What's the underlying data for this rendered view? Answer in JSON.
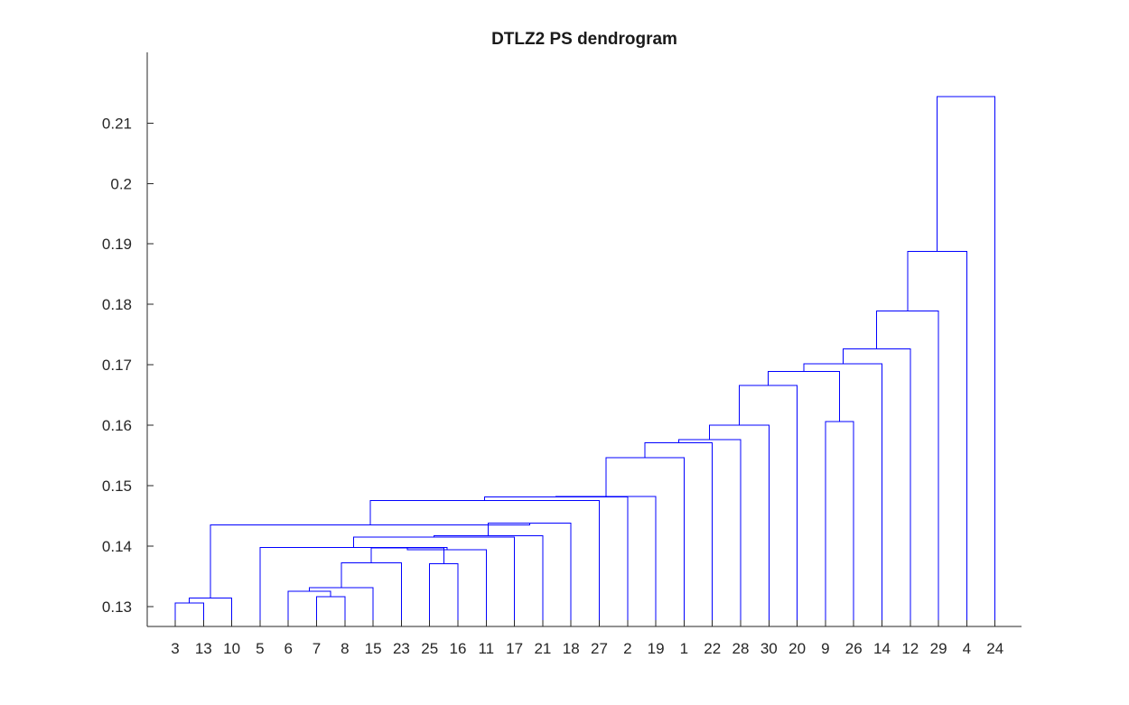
{
  "chart_data": {
    "type": "dendrogram",
    "title": "DTLZ2 PS dendrogram",
    "xlabel": "",
    "ylabel": "",
    "leaf_order": [
      "3",
      "13",
      "10",
      "5",
      "6",
      "7",
      "8",
      "15",
      "23",
      "25",
      "16",
      "11",
      "17",
      "21",
      "18",
      "27",
      "2",
      "19",
      "1",
      "22",
      "28",
      "30",
      "20",
      "9",
      "26",
      "14",
      "12",
      "29",
      "4",
      "24"
    ],
    "yticks": [
      "0.13",
      "0.14",
      "0.15",
      "0.16",
      "0.17",
      "0.18",
      "0.19",
      "0.2",
      "0.21"
    ],
    "ylim": [
      0.1267,
      0.2217
    ],
    "grid": false,
    "links": [
      {
        "id": "A",
        "left": "3",
        "right": "13",
        "height": 0.1306
      },
      {
        "id": "B",
        "left": "A",
        "right": "10",
        "height": 0.1314
      },
      {
        "id": "C",
        "left": "7",
        "right": "8",
        "height": 0.1316
      },
      {
        "id": "D",
        "left": "6",
        "right": "C",
        "height": 0.1325
      },
      {
        "id": "E",
        "left": "D",
        "right": "15",
        "height": 0.1331
      },
      {
        "id": "F",
        "left": "25",
        "right": "16",
        "height": 0.1371
      },
      {
        "id": "G",
        "left": "E",
        "right": "23",
        "height": 0.1372
      },
      {
        "id": "H",
        "left": "G",
        "right": "F",
        "height": 0.1397
      },
      {
        "id": "I",
        "left": "H",
        "right": "11",
        "height": 0.1394
      },
      {
        "id": "J",
        "left": "5",
        "right": "I",
        "height": 0.1398
      },
      {
        "id": "K",
        "left": "J",
        "right": "17",
        "height": 0.1415
      },
      {
        "id": "L",
        "left": "K",
        "right": "21",
        "height": 0.1417
      },
      {
        "id": "M",
        "left": "L",
        "right": "18",
        "height": 0.1438
      },
      {
        "id": "N",
        "left": "B",
        "right": "M",
        "height": 0.1435
      },
      {
        "id": "O",
        "left": "N",
        "right": "27",
        "height": 0.1475
      },
      {
        "id": "P",
        "left": "O",
        "right": "2",
        "height": 0.1481
      },
      {
        "id": "Q",
        "left": "P",
        "right": "19",
        "height": 0.1482
      },
      {
        "id": "R",
        "left": "Q",
        "right": "1",
        "height": 0.1546
      },
      {
        "id": "S",
        "left": "R",
        "right": "22",
        "height": 0.1571
      },
      {
        "id": "T",
        "left": "S",
        "right": "28",
        "height": 0.1576
      },
      {
        "id": "U",
        "left": "T",
        "right": "30",
        "height": 0.16
      },
      {
        "id": "V",
        "left": "U",
        "right": "20",
        "height": 0.1666
      },
      {
        "id": "W",
        "left": "9",
        "right": "26",
        "height": 0.1606
      },
      {
        "id": "X",
        "left": "V",
        "right": "W",
        "height": 0.1689
      },
      {
        "id": "Y",
        "left": "X",
        "right": "14",
        "height": 0.1702
      },
      {
        "id": "Z",
        "left": "Y",
        "right": "12",
        "height": 0.1726
      },
      {
        "id": "AA",
        "left": "Z",
        "right": "29",
        "height": 0.1789
      },
      {
        "id": "AB",
        "left": "AA",
        "right": "4",
        "height": 0.1888
      },
      {
        "id": "AC",
        "left": "AB",
        "right": "24",
        "height": 0.2144
      }
    ],
    "colors": {
      "links": "#0000ff",
      "axes": "#262626",
      "background": "#ffffff"
    }
  }
}
